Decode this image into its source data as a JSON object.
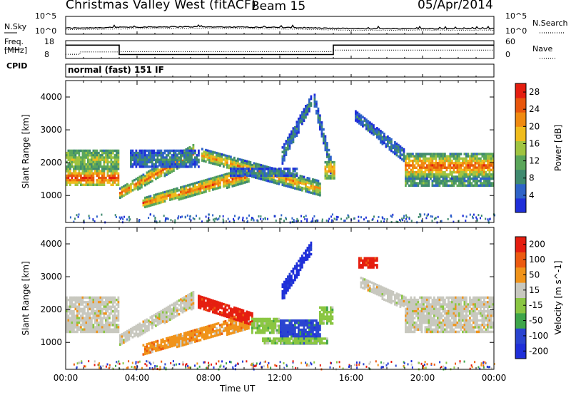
{
  "header": {
    "title_left": "Christmas Valley West (fitACF)",
    "title_mid": "Beam 15",
    "title_right": "05/Apr/2014"
  },
  "noise_panel": {
    "left_label": "N.Sky",
    "left_ticks": [
      "10^5",
      "10^0"
    ],
    "right_ticks": [
      "10^5",
      "10^0"
    ],
    "right_label": "N.Search"
  },
  "freq_panel": {
    "left_label_line1": "Freq.",
    "left_label_line2": "[MHz]",
    "left_ticks": [
      "18",
      "8"
    ],
    "right_ticks": [
      "60",
      "0"
    ],
    "right_label": "Nave"
  },
  "cpid_panel": {
    "label": "CPID",
    "mode_text": "normal (fast) 151 IF"
  },
  "x_axis": {
    "title": "Time UT",
    "ticks": [
      "00:00",
      "04:00",
      "08:00",
      "12:00",
      "16:00",
      "20:00",
      "00:00"
    ]
  },
  "colors": {
    "power": [
      "#1f2fd9",
      "#2e63c8",
      "#3f8a6f",
      "#5aa65a",
      "#a0c440",
      "#f0bc1c",
      "#f08a10",
      "#e8560c",
      "#e51e10"
    ],
    "velocity": [
      "#e51e10",
      "#ec5a10",
      "#f0931a",
      "#c8c8bf",
      "#8ac642",
      "#3ea54a",
      "#2a44d0",
      "#1f2fd9"
    ]
  },
  "chart_data": [
    {
      "type": "line",
      "title": "",
      "ylabel": "N.Sky",
      "y_scale": "log",
      "ylim_text": [
        "10^0",
        "10^5"
      ],
      "series": [
        {
          "name": "N.Sky",
          "style": "solid"
        },
        {
          "name": "N.Search",
          "style": "dotted"
        }
      ],
      "x_range_hours": [
        0,
        24
      ],
      "points_hours_level": [
        [
          0,
          0.6
        ],
        [
          2,
          0.65
        ],
        [
          3,
          0.7
        ],
        [
          4,
          0.75
        ],
        [
          6,
          0.8
        ],
        [
          8,
          0.78
        ],
        [
          12,
          0.7
        ],
        [
          16,
          0.5
        ],
        [
          20,
          0.5
        ],
        [
          24,
          0.5
        ]
      ]
    },
    {
      "type": "line",
      "ylabel": "Freq. [MHz]",
      "ylim": [
        8,
        18
      ],
      "series": [
        {
          "name": "Freq.",
          "style": "solid",
          "steps": [
            {
              "from": 0,
              "to": 3.0,
              "value": 15.5
            },
            {
              "from": 3.0,
              "to": 15.0,
              "value": 10.2
            },
            {
              "from": 15.0,
              "to": 24,
              "value": 15.5
            }
          ]
        },
        {
          "name": "Nave",
          "style": "dotted",
          "y2lim": [
            0,
            60
          ],
          "steps": [
            {
              "from": 0,
              "to": 0.8,
              "value": 14
            },
            {
              "from": 0.8,
              "to": 3.0,
              "value": 22
            },
            {
              "from": 3.0,
              "to": 15.0,
              "value": 23
            },
            {
              "from": 15.0,
              "to": 24,
              "value": 28
            }
          ]
        }
      ]
    },
    {
      "type": "heatmap",
      "parameter": "Power",
      "ylabel": "Slant Range [km]",
      "ylim": [
        180,
        4500
      ],
      "y_ticks": [
        1000,
        2000,
        3000,
        4000
      ],
      "xlim_hours": [
        0,
        24
      ],
      "colorbar": {
        "label": "Power [dB]",
        "ticks": [
          4,
          8,
          12,
          16,
          20,
          24,
          28
        ],
        "range": [
          0,
          30
        ]
      },
      "bands": [
        {
          "t0": 0.0,
          "t1": 2.95,
          "r0": 1300,
          "r1": 1850,
          "level": 7.5,
          "edge": 3
        },
        {
          "t0": 0.0,
          "t1": 2.95,
          "r0": 1850,
          "r1": 2400,
          "level": 4,
          "edge": 1
        },
        {
          "t0": 3.0,
          "t1": 7.2,
          "r0": 950,
          "r1": 1250,
          "r0end": 2100,
          "r1end": 2600,
          "level": 7,
          "edge": 3
        },
        {
          "t0": 3.6,
          "t1": 7.5,
          "r0": 1900,
          "r1": 2400,
          "level": 2,
          "edge": 1
        },
        {
          "t0": 4.3,
          "t1": 10.3,
          "r0": 650,
          "r1": 950,
          "r0end": 1450,
          "r1end": 1900,
          "level": 7,
          "edge": 3
        },
        {
          "t0": 7.6,
          "t1": 14.3,
          "r0": 2050,
          "r1": 2450,
          "r0end": 1000,
          "r1end": 1450,
          "level": 6,
          "edge": 3
        },
        {
          "t0": 9.2,
          "t1": 13.0,
          "r0": 1600,
          "r1": 1850,
          "level": 2,
          "edge": 1
        },
        {
          "t0": 12.1,
          "t1": 13.8,
          "r0": 2000,
          "r1": 2500,
          "r0end": 3800,
          "r1end": 4150,
          "level": 2,
          "edge": 1
        },
        {
          "t0": 13.9,
          "t1": 14.9,
          "r0": 3700,
          "r1": 4100,
          "r0end": 1500,
          "r1end": 2000,
          "level": 2,
          "edge": 1
        },
        {
          "t0": 14.5,
          "t1": 15.1,
          "r0": 1550,
          "r1": 2050,
          "level": 6,
          "edge": 2
        },
        {
          "t0": 16.2,
          "t1": 19.0,
          "r0": 3300,
          "r1": 3600,
          "r0end": 2000,
          "r1end": 2400,
          "level": 2,
          "edge": 1
        },
        {
          "t0": 19.0,
          "t1": 24.0,
          "r0": 1550,
          "r1": 2300,
          "level": 7,
          "edge": 3
        },
        {
          "t0": 19.0,
          "t1": 24.0,
          "r0": 1300,
          "r1": 1550,
          "level": 3,
          "edge": 1
        }
      ]
    },
    {
      "type": "heatmap",
      "parameter": "Velocity",
      "ylabel": "Slant Range [km]",
      "ylim": [
        180,
        4500
      ],
      "y_ticks": [
        1000,
        2000,
        3000,
        4000
      ],
      "xlim_hours": [
        0,
        24
      ],
      "colorbar": {
        "label": "Velocity [m s^-1]",
        "ticks": [
          200,
          100,
          50,
          15,
          -15,
          -50,
          -100,
          -200
        ],
        "range": [
          -250,
          250
        ]
      },
      "bands": [
        {
          "t0": 0.0,
          "t1": 2.95,
          "r0": 1300,
          "r1": 2400,
          "color": 3
        },
        {
          "t0": 3.0,
          "t1": 7.2,
          "r0": 950,
          "r1": 1250,
          "r0end": 2100,
          "r1end": 2600,
          "color": 3
        },
        {
          "t0": 4.3,
          "t1": 10.3,
          "r0": 650,
          "r1": 950,
          "r0end": 1450,
          "r1end": 1900,
          "color": 2
        },
        {
          "t0": 7.4,
          "t1": 10.5,
          "r0": 2050,
          "r1": 2450,
          "r0end": 1500,
          "r1end": 1900,
          "color": 0
        },
        {
          "t0": 10.4,
          "t1": 12.0,
          "r0": 1300,
          "r1": 1750,
          "color": 4
        },
        {
          "t0": 12.0,
          "t1": 14.3,
          "r0": 1000,
          "r1": 1700,
          "color": 6
        },
        {
          "t0": 11.0,
          "t1": 14.7,
          "r0": 950,
          "r1": 1150,
          "color": 4
        },
        {
          "t0": 12.1,
          "t1": 13.8,
          "r0": 2300,
          "r1": 2800,
          "r0end": 3800,
          "r1end": 4150,
          "color": 7
        },
        {
          "t0": 14.2,
          "t1": 15.0,
          "r0": 1600,
          "r1": 2100,
          "color": 4
        },
        {
          "t0": 16.4,
          "t1": 17.5,
          "r0": 3300,
          "r1": 3600,
          "color": 0
        },
        {
          "t0": 16.5,
          "t1": 19.0,
          "r0": 2700,
          "r1": 3000,
          "r0end": 2000,
          "r1end": 2400,
          "color": 3
        },
        {
          "t0": 19.0,
          "t1": 24.0,
          "r0": 1300,
          "r1": 2400,
          "color": 3
        }
      ]
    }
  ]
}
